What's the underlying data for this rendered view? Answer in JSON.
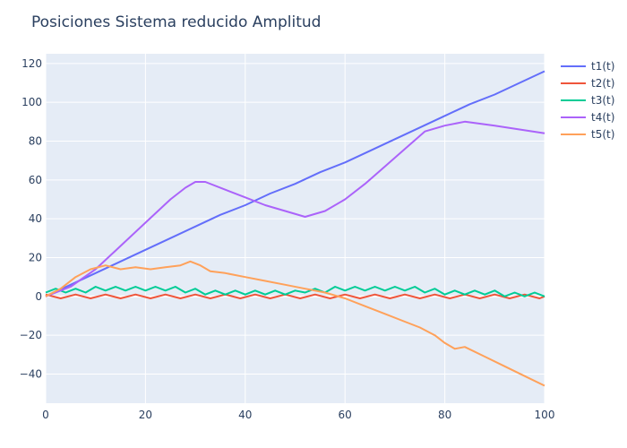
{
  "chart_data": {
    "type": "line",
    "title": "Posiciones Sistema reducido Amplitud",
    "xlabel": "",
    "ylabel": "",
    "xlim": [
      0,
      100
    ],
    "ylim": [
      -55,
      125
    ],
    "xticks": [
      0,
      20,
      40,
      60,
      80,
      100
    ],
    "yticks": [
      -40,
      -20,
      0,
      20,
      40,
      60,
      80,
      100,
      120
    ],
    "grid": true,
    "legend_position": "top-right",
    "series": [
      {
        "name": "t1(t)",
        "color": "#636efa",
        "x": [
          0,
          5,
          10,
          15,
          20,
          25,
          30,
          35,
          40,
          45,
          50,
          55,
          60,
          65,
          70,
          75,
          80,
          85,
          90,
          95,
          100
        ],
        "y": [
          0,
          6,
          12,
          18,
          24,
          30,
          36,
          42,
          47,
          53,
          58,
          64,
          69,
          75,
          81,
          87,
          93,
          99,
          104,
          110,
          116
        ]
      },
      {
        "name": "t2(t)",
        "color": "#EF553B",
        "x": [
          0,
          3,
          6,
          9,
          12,
          15,
          18,
          21,
          24,
          27,
          30,
          33,
          36,
          39,
          42,
          45,
          48,
          51,
          54,
          57,
          60,
          63,
          66,
          69,
          72,
          75,
          78,
          81,
          84,
          87,
          90,
          93,
          96,
          99,
          100
        ],
        "y": [
          1,
          -1,
          1,
          -1,
          1,
          -1,
          1,
          -1,
          1,
          -1,
          1,
          -1,
          1,
          -1,
          1,
          -1,
          1,
          -1,
          1,
          -1,
          1,
          -1,
          1,
          -1,
          1,
          -1,
          1,
          -1,
          1,
          -1,
          1,
          -1,
          1,
          -1,
          0
        ]
      },
      {
        "name": "t3(t)",
        "color": "#00cc96",
        "x": [
          0,
          2,
          4,
          6,
          8,
          10,
          12,
          14,
          16,
          18,
          20,
          22,
          24,
          26,
          28,
          30,
          32,
          34,
          36,
          38,
          40,
          42,
          44,
          46,
          48,
          50,
          52,
          54,
          56,
          58,
          60,
          62,
          64,
          66,
          68,
          70,
          72,
          74,
          76,
          78,
          80,
          82,
          84,
          86,
          88,
          90,
          92,
          94,
          96,
          98,
          100
        ],
        "y": [
          2,
          4,
          2,
          4,
          2,
          5,
          3,
          5,
          3,
          5,
          3,
          5,
          3,
          5,
          2,
          4,
          1,
          3,
          1,
          3,
          1,
          3,
          1,
          3,
          1,
          3,
          2,
          4,
          2,
          5,
          3,
          5,
          3,
          5,
          3,
          5,
          3,
          5,
          2,
          4,
          1,
          3,
          1,
          3,
          1,
          3,
          0,
          2,
          0,
          2,
          0
        ]
      },
      {
        "name": "t4(t)",
        "color": "#ab63fa",
        "x": [
          0,
          5,
          10,
          15,
          20,
          25,
          28,
          30,
          32,
          36,
          40,
          44,
          48,
          52,
          56,
          60,
          64,
          68,
          72,
          76,
          80,
          84,
          87,
          90,
          95,
          100
        ],
        "y": [
          0,
          5,
          14,
          26,
          38,
          50,
          56,
          59,
          59,
          55,
          51,
          47,
          44,
          41,
          44,
          50,
          58,
          67,
          76,
          85,
          88,
          90,
          89,
          88,
          86,
          84
        ]
      },
      {
        "name": "t5(t)",
        "color": "#FFA15A",
        "x": [
          0,
          3,
          6,
          9,
          12,
          15,
          18,
          21,
          24,
          27,
          29,
          31,
          33,
          36,
          40,
          44,
          48,
          52,
          56,
          60,
          64,
          68,
          72,
          75,
          78,
          80,
          82,
          84,
          88,
          92,
          96,
          100
        ],
        "y": [
          0,
          4,
          10,
          14,
          16,
          14,
          15,
          14,
          15,
          16,
          18,
          16,
          13,
          12,
          10,
          8,
          6,
          4,
          2,
          -1,
          -5,
          -9,
          -13,
          -16,
          -20,
          -24,
          -27,
          -26,
          -31,
          -36,
          -41,
          -46
        ]
      }
    ]
  }
}
